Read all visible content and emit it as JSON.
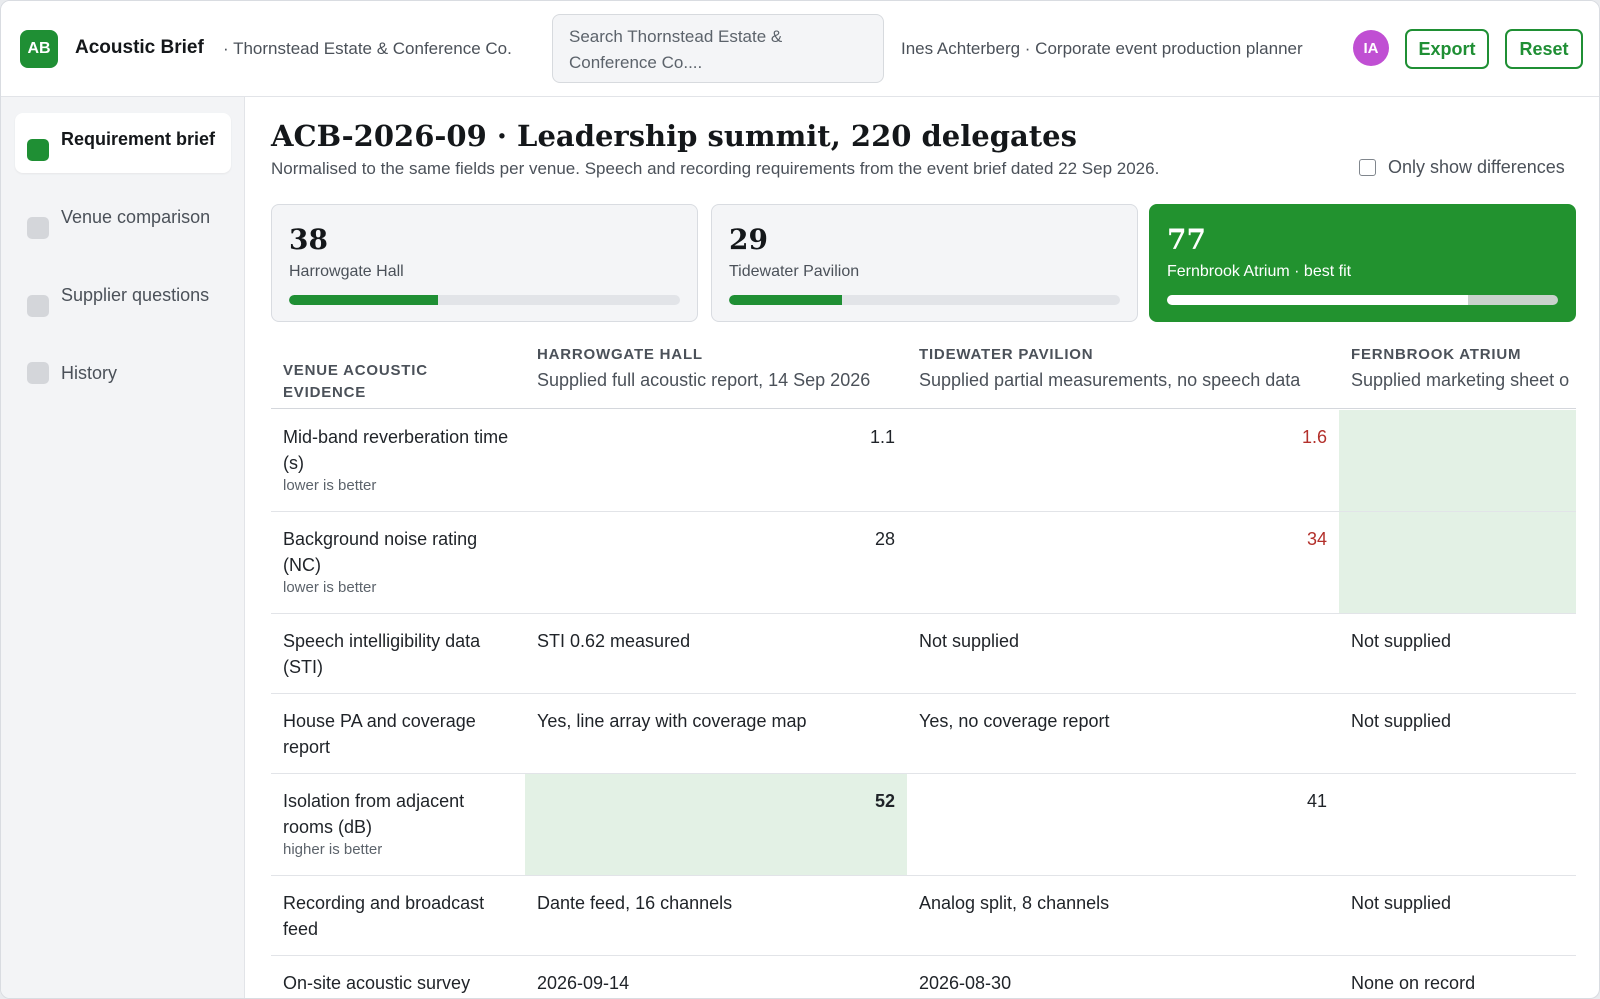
{
  "app": {
    "logo_text": "AB",
    "title": "Acoustic Brief",
    "org": "· Thornstead Estate & Conference Co.",
    "search_value": "Search Thornstead Estate & Conference Co....",
    "user": "Ines Achterberg · Corporate event production planner",
    "avatar_initials": "IA",
    "avatar_color": "#c04fd3",
    "export_label": "Export",
    "reset_label": "Reset",
    "accent": "#1f8f34"
  },
  "sidebar": {
    "items": [
      {
        "label": "Requirement brief",
        "active": true
      },
      {
        "label": "Venue comparison",
        "active": false
      },
      {
        "label": "Supplier questions",
        "active": false
      },
      {
        "label": "History",
        "active": false
      }
    ]
  },
  "page": {
    "title": "ACB-2026-09 · Leadership summit, 220 delegates",
    "subtitle": "Normalised to the same fields per venue. Speech and recording requirements from the event brief dated 22 Sep 2026.",
    "diff_toggle_label": "Only show differences",
    "diff_toggle_checked": false
  },
  "scores": [
    {
      "score": "38",
      "label": "Harrowgate Hall",
      "fill_pct": 38,
      "best": false
    },
    {
      "score": "29",
      "label": "Tidewater Pavilion",
      "fill_pct": 29,
      "best": false
    },
    {
      "score": "77",
      "label": "Fernbrook Atrium · best fit",
      "fill_pct": 77,
      "best": true
    }
  ],
  "table": {
    "header": {
      "metric_label": "VENUE ACOUSTIC EVIDENCE",
      "venues": [
        {
          "name": "HARROWGATE HALL",
          "note": "Supplied full acoustic report, 14 Sep 2026"
        },
        {
          "name": "TIDEWATER PAVILION",
          "note": "Supplied partial measurements, no speech data"
        },
        {
          "name": "FERNBROOK ATRIUM",
          "note": "Supplied marketing sheet o"
        }
      ]
    },
    "rows": [
      {
        "metric": "Mid-band reverberation time (s)",
        "hint": "lower is better",
        "values": [
          "1.1",
          "1.6",
          ""
        ]
      },
      {
        "metric": "Background noise rating (NC)",
        "hint": "lower is better",
        "values": [
          "28",
          "34",
          ""
        ]
      },
      {
        "metric": "Speech intelligibility data (STI)",
        "hint": "",
        "values": [
          "STI 0.62 measured",
          "Not supplied",
          "Not supplied"
        ]
      },
      {
        "metric": "House PA and coverage report",
        "hint": "",
        "values": [
          "Yes, line array with coverage map",
          "Yes, no coverage report",
          "Not supplied"
        ]
      },
      {
        "metric": "Isolation from adjacent rooms (dB)",
        "hint": "higher is better",
        "values": [
          "52",
          "41",
          ""
        ]
      },
      {
        "metric": "Recording and broadcast feed",
        "hint": "",
        "values": [
          "Dante feed, 16 channels",
          "Analog split, 8 channels",
          "Not supplied"
        ]
      },
      {
        "metric": "On-site acoustic survey",
        "hint": "",
        "values": [
          "2026-09-14",
          "2026-08-30",
          "None on record"
        ]
      }
    ]
  }
}
